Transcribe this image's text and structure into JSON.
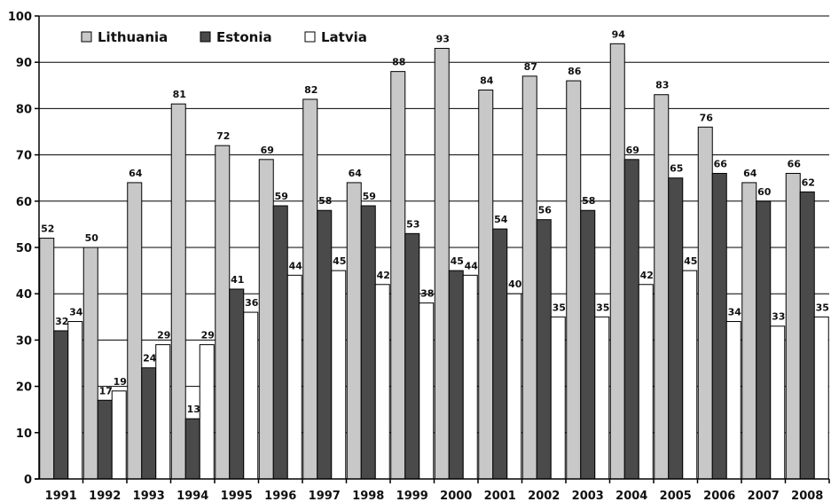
{
  "chart_data": {
    "type": "bar",
    "title": "",
    "xlabel": "",
    "ylabel": "",
    "ylim": [
      0,
      100
    ],
    "yticks": [
      0,
      10,
      20,
      30,
      40,
      50,
      60,
      70,
      80,
      90,
      100
    ],
    "grid": true,
    "legend_position": "top-left",
    "categories": [
      "1991",
      "1992",
      "1993",
      "1994",
      "1995",
      "1996",
      "1997",
      "1998",
      "1999",
      "2000",
      "2001",
      "2002",
      "2003",
      "2004",
      "2005",
      "2006",
      "2007",
      "2008"
    ],
    "series": [
      {
        "name": "Lithuania",
        "color": "#c8c8c8",
        "values": [
          52,
          50,
          64,
          81,
          72,
          69,
          82,
          64,
          88,
          93,
          84,
          87,
          86,
          94,
          83,
          76,
          64,
          66
        ]
      },
      {
        "name": "Estonia",
        "color": "#4a4a4a",
        "values": [
          32,
          17,
          24,
          13,
          41,
          59,
          58,
          59,
          53,
          45,
          54,
          56,
          58,
          69,
          65,
          66,
          60,
          62
        ]
      },
      {
        "name": "Latvia",
        "color": "#ffffff",
        "values": [
          34,
          19,
          29,
          29,
          36,
          44,
          45,
          42,
          38,
          44,
          40,
          35,
          35,
          42,
          45,
          34,
          33,
          35
        ]
      }
    ]
  }
}
